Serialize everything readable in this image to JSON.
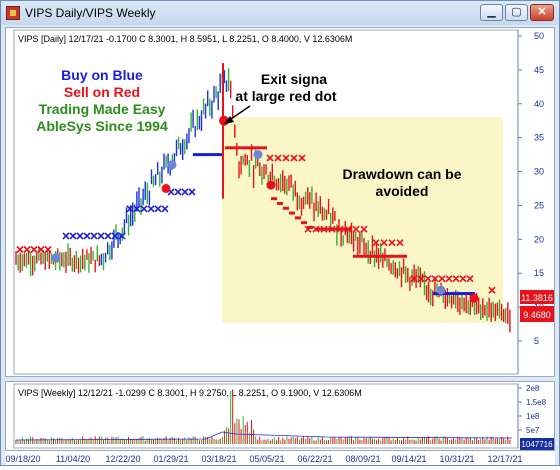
{
  "window": {
    "title": "VIPS Daily/VIPS Weekly",
    "minimize_label": "▁",
    "maximize_label": "▢",
    "close_label": "✕"
  },
  "main_chart": {
    "header": "VIPS [Daily] 12/17/21  -0.1700 C 8.3001, H 8.5951, L 8.2251, O 8.4000, V 12.6306M",
    "y_ticks": [
      "50",
      "45",
      "40",
      "35",
      "30",
      "25",
      "20",
      "15",
      "10",
      "5"
    ],
    "price_label_top": "11.3816",
    "price_label_bottom": "9.4680",
    "ad_lines": [
      "Buy on Blue",
      "Sell on Red",
      "Trading Made Easy",
      "AbleSys Since 1994"
    ],
    "annotation_exit": [
      "Exit signa",
      "at large red dot"
    ],
    "annotation_drawdown": [
      "Drawdown can be",
      "avoided"
    ]
  },
  "sub_chart": {
    "header": "VIPS [Weekly] 12/12/21  -1.0299 C 8.3001, H 9.2750, L 8.2251, O 9.1900, V 12.6306M",
    "y_ticks": [
      "2e8",
      "1.5e8",
      "1e8",
      "5e7"
    ],
    "volume_label": "1047716"
  },
  "x_axis": {
    "labels": [
      "09/18/20",
      "11/04/20",
      "12/22/20",
      "01/29/21",
      "03/18/21",
      "05/05/21",
      "06/22/21",
      "08/09/21",
      "09/14/21",
      "10/31/21",
      "12/17/21"
    ]
  },
  "colors": {
    "buy": "#1a1fd6",
    "sell": "#e8121a",
    "ad_green": "#2e8b1e",
    "drawdown_box": "#faf6c8",
    "bar_up": "#1a2fe0",
    "bar_down": "#e8121a",
    "bar_neutral": "#2db52d"
  }
}
